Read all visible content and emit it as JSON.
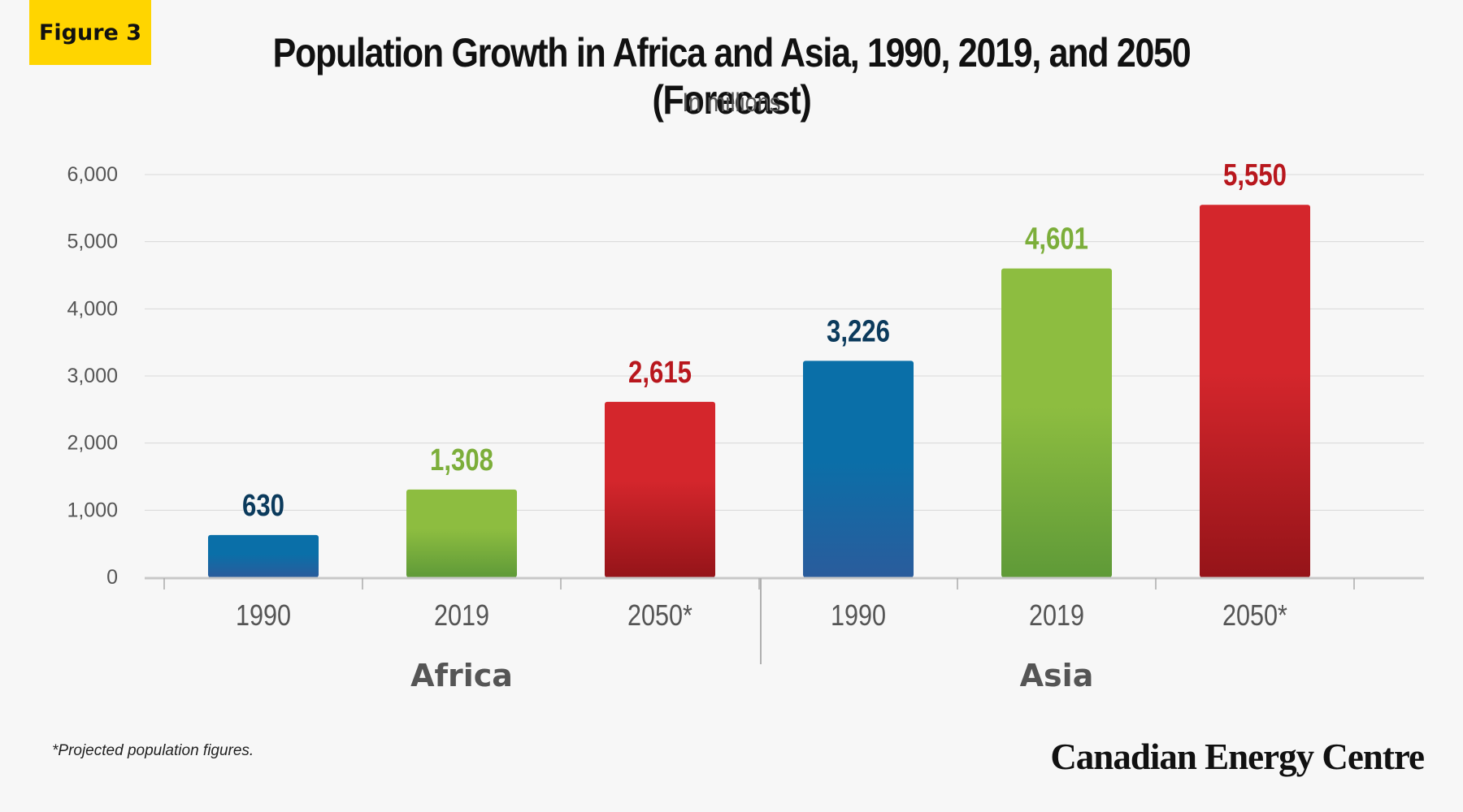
{
  "badge": "Figure 3",
  "title": "Population Growth in Africa and Asia, 1990, 2019, and 2050 (Forecast)",
  "subtitle": "In millions",
  "footnote": "*Projected population figures.",
  "brand": "Canadian Energy Centre",
  "colors": {
    "blue": "#0a6fa8",
    "blue_dark": "#2a5c9c",
    "green": "#8dbd40",
    "green_dark": "#5f9a38",
    "red": "#d4262c",
    "red_dark": "#951419",
    "label_blue": "#0b3a5c",
    "label_green": "#7cae3a",
    "label_red": "#b8171d",
    "grid": "#d8d8d8",
    "axis_text": "#555555",
    "group_text": "#555555"
  },
  "chart_data": {
    "type": "bar",
    "groups": [
      {
        "name": "Africa",
        "categories": [
          "1990",
          "2019",
          "2050*"
        ],
        "values": [
          630,
          1308,
          2615
        ],
        "value_labels": [
          "630",
          "1,308",
          "2,615"
        ]
      },
      {
        "name": "Asia",
        "categories": [
          "1990",
          "2019",
          "2050*"
        ],
        "values": [
          3226,
          4601,
          5550
        ],
        "value_labels": [
          "3,226",
          "4,601",
          "5,550"
        ]
      }
    ],
    "bar_colors": [
      "blue",
      "green",
      "red"
    ],
    "yticks": [
      0,
      1000,
      2000,
      3000,
      4000,
      5000,
      6000
    ],
    "ytick_labels": [
      "0",
      "1,000",
      "2,000",
      "3,000",
      "4,000",
      "5,000",
      "6,000"
    ],
    "ylim": [
      0,
      6000
    ],
    "grid": true,
    "legend": "none"
  }
}
